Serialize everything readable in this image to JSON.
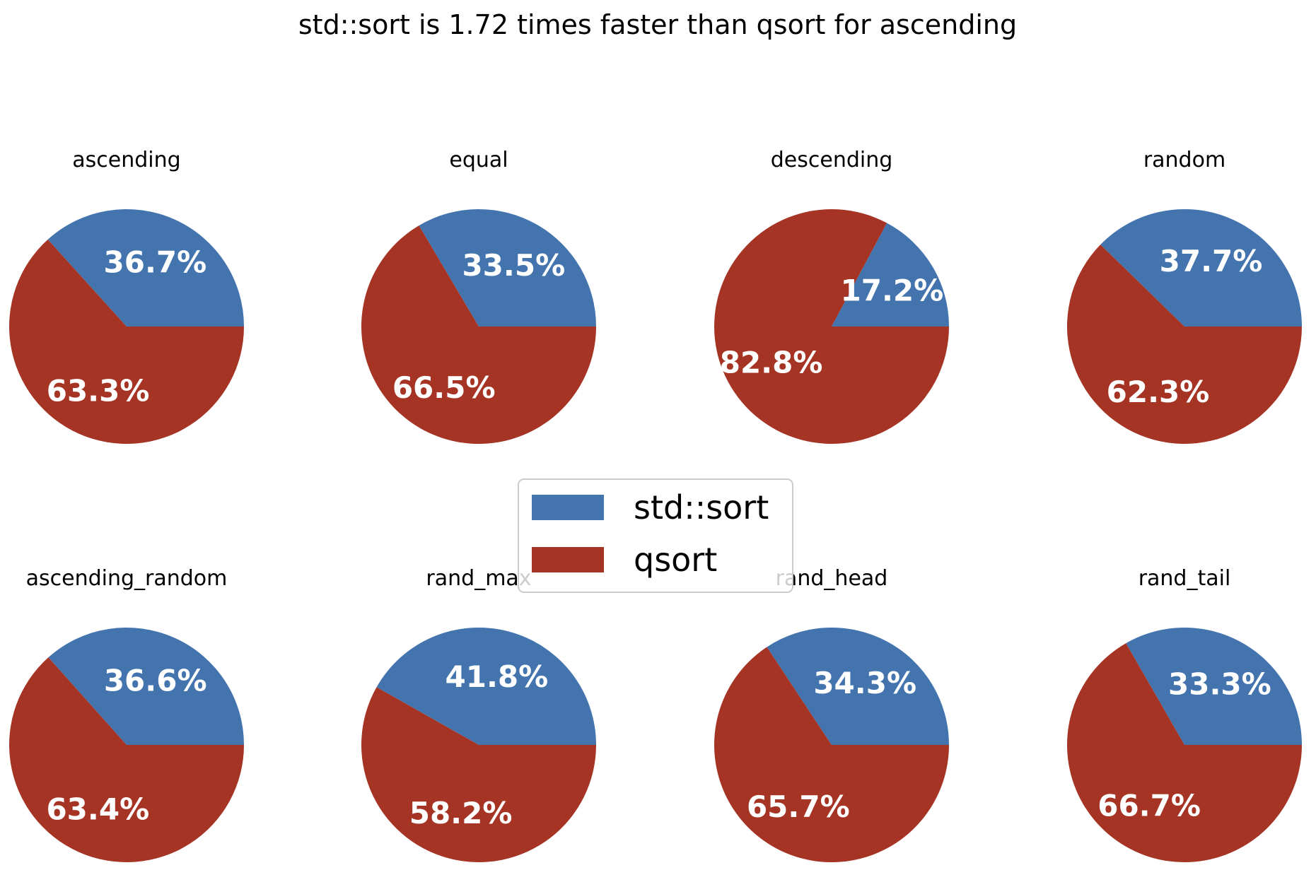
{
  "chart_data": {
    "type": "pie",
    "title": "std::sort is 1.72 times faster than qsort for ascending",
    "legend": {
      "placement": "center",
      "entries": [
        {
          "name": "std::sort",
          "color": "#4374ae"
        },
        {
          "name": "qsort",
          "color": "#a63425"
        }
      ]
    },
    "pies": [
      {
        "title": "ascending",
        "values": [
          36.7,
          63.3
        ],
        "labels": [
          "36.7%",
          "63.3%"
        ]
      },
      {
        "title": "equal",
        "values": [
          33.5,
          66.5
        ],
        "labels": [
          "33.5%",
          "66.5%"
        ]
      },
      {
        "title": "descending",
        "values": [
          17.2,
          82.8
        ],
        "labels": [
          "17.2%",
          "82.8%"
        ]
      },
      {
        "title": "random",
        "values": [
          37.7,
          62.3
        ],
        "labels": [
          "37.7%",
          "62.3%"
        ]
      },
      {
        "title": "ascending_random",
        "values": [
          36.6,
          63.4
        ],
        "labels": [
          "36.6%",
          "63.4%"
        ]
      },
      {
        "title": "rand_max",
        "values": [
          41.8,
          58.2
        ],
        "labels": [
          "41.8%",
          "58.2%"
        ]
      },
      {
        "title": "rand_head",
        "values": [
          34.3,
          65.7
        ],
        "labels": [
          "34.3%",
          "65.7%"
        ]
      },
      {
        "title": "rand_tail",
        "values": [
          33.3,
          66.7
        ],
        "labels": [
          "33.3%",
          "66.7%"
        ]
      }
    ]
  }
}
